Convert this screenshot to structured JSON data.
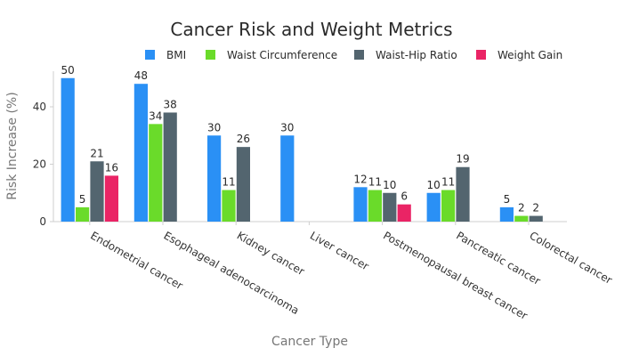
{
  "chart_data": {
    "type": "bar",
    "title": "Cancer Risk and Weight Metrics",
    "xlabel": "Cancer Type",
    "ylabel": "Risk Increase (%)",
    "ylim": [
      0,
      52
    ],
    "yticks": [
      0,
      20,
      40
    ],
    "grid": false,
    "legend_position": "top-right",
    "categories": [
      "Endometrial cancer",
      "Esophageal adenocarcinoma",
      "Kidney cancer",
      "Liver cancer",
      "Postmenopausal breast cancer",
      "Pancreatic cancer",
      "Colorectal cancer"
    ],
    "series": [
      {
        "name": "BMI",
        "color": "#2a90f5",
        "values": [
          50,
          48,
          30,
          30,
          12,
          10,
          5
        ]
      },
      {
        "name": "Waist Circumference",
        "color": "#6adb2a",
        "values": [
          5,
          34,
          11,
          null,
          11,
          11,
          2
        ]
      },
      {
        "name": "Waist-Hip Ratio",
        "color": "#53656f",
        "values": [
          21,
          38,
          26,
          null,
          10,
          19,
          2
        ]
      },
      {
        "name": "Weight Gain",
        "color": "#ea2465",
        "values": [
          16,
          null,
          null,
          null,
          6,
          null,
          null
        ]
      }
    ]
  }
}
